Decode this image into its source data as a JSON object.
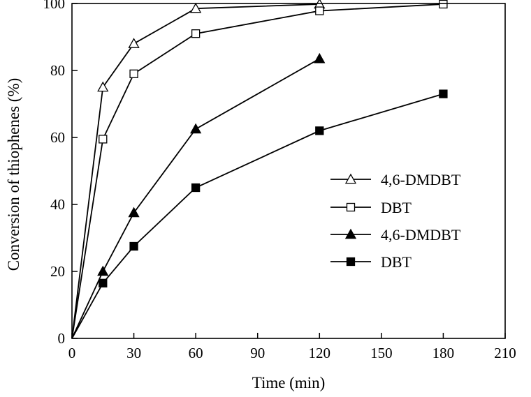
{
  "chart_data": {
    "type": "line",
    "title": "",
    "xlabel": "Time (min)",
    "ylabel": "Conversion of thiophenes (%)",
    "xlim": [
      0,
      210
    ],
    "ylim": [
      0,
      100
    ],
    "xticks": [
      0,
      30,
      60,
      90,
      120,
      150,
      180,
      210
    ],
    "yticks": [
      0,
      20,
      40,
      60,
      80,
      100
    ],
    "grid": false,
    "legend_position": "center-right",
    "series": [
      {
        "name": "4,6-DMDBT",
        "marker": "triangle-open",
        "x": [
          0,
          15,
          30,
          60,
          120
        ],
        "y": [
          0,
          75,
          88,
          98.5,
          99.8
        ]
      },
      {
        "name": "DBT",
        "marker": "square-open",
        "x": [
          0,
          15,
          30,
          60,
          120,
          180
        ],
        "y": [
          0,
          59.5,
          79,
          91,
          97.8,
          99.8
        ]
      },
      {
        "name": "4,6-DMDBT",
        "marker": "triangle-filled",
        "x": [
          0,
          15,
          30,
          60,
          120
        ],
        "y": [
          0,
          20,
          37.5,
          62.5,
          83.5
        ]
      },
      {
        "name": "DBT",
        "marker": "square-filled",
        "x": [
          0,
          15,
          30,
          60,
          120,
          180
        ],
        "y": [
          0,
          16.5,
          27.5,
          45,
          62,
          73
        ]
      }
    ]
  }
}
